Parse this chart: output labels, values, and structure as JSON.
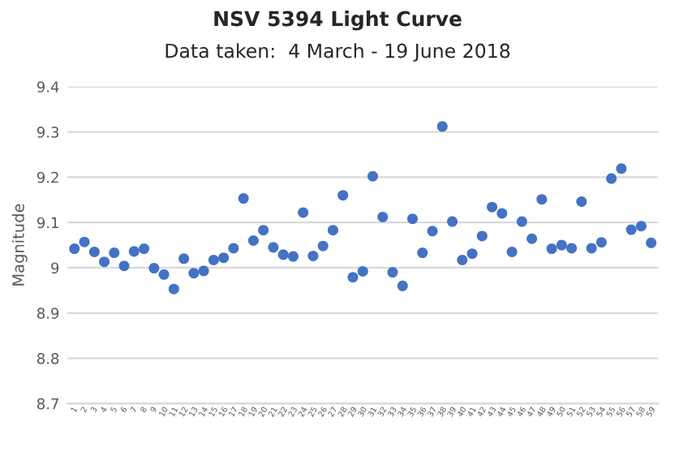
{
  "chart_data": {
    "type": "scatter",
    "title": "NSV 5394 Light Curve",
    "subtitle": "Data taken:  4 March - 19 June 2018",
    "ylabel": "Magnitude",
    "categories": [
      "1",
      "2",
      "3",
      "4",
      "5",
      "6",
      "7",
      "8",
      "9",
      "10",
      "11",
      "12",
      "13",
      "14",
      "15",
      "16",
      "17",
      "18",
      "19",
      "20",
      "21",
      "22",
      "23",
      "24",
      "25",
      "26",
      "27",
      "28",
      "29",
      "30",
      "31",
      "32",
      "33",
      "34",
      "35",
      "36",
      "37",
      "38",
      "39",
      "40",
      "41",
      "42",
      "43",
      "44",
      "45",
      "46",
      "47",
      "48",
      "49",
      "50",
      "51",
      "52",
      "53",
      "54",
      "55",
      "56",
      "57",
      "58",
      "59"
    ],
    "series": [
      {
        "color": "#4472c4",
        "values": [
          9.042,
          9.057,
          9.035,
          9.013,
          9.033,
          9.004,
          9.036,
          9.042,
          8.999,
          8.985,
          8.953,
          9.02,
          8.988,
          8.993,
          9.017,
          9.022,
          9.043,
          9.153,
          9.06,
          9.083,
          9.045,
          9.029,
          9.025,
          9.122,
          9.026,
          9.048,
          9.083,
          9.16,
          8.979,
          8.992,
          9.202,
          9.112,
          8.99,
          8.96,
          9.108,
          9.033,
          9.081,
          9.312,
          9.102,
          9.017,
          9.031,
          9.07,
          9.134,
          9.12,
          9.035,
          9.102,
          9.064,
          9.151,
          9.042,
          9.05,
          9.043,
          9.146,
          9.043,
          9.056,
          9.197,
          9.219,
          9.084,
          9.092,
          9.055
        ]
      }
    ],
    "ylim": [
      8.7,
      9.4
    ],
    "yticks": [
      8.7,
      8.8,
      8.9,
      {
        "value": 9.0,
        "label": "9"
      },
      9.1,
      9.2,
      9.3,
      9.4
    ],
    "grid": "y",
    "marker": "circle"
  }
}
